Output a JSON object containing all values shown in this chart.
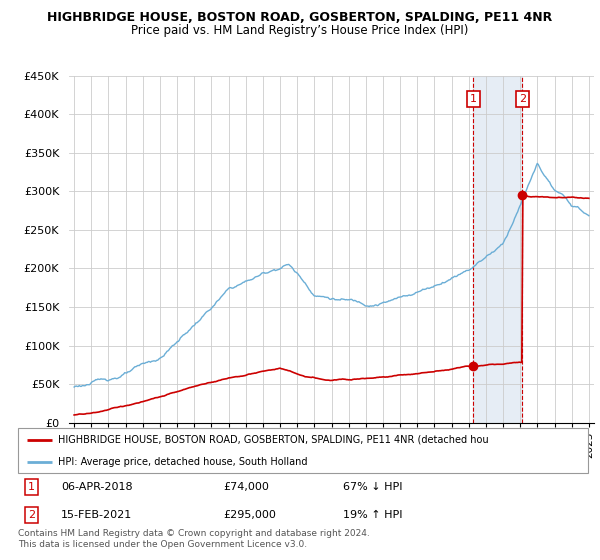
{
  "title": "HIGHBRIDGE HOUSE, BOSTON ROAD, GOSBERTON, SPALDING, PE11 4NR",
  "subtitle": "Price paid vs. HM Land Registry’s House Price Index (HPI)",
  "ylabel_ticks": [
    "£0",
    "£50K",
    "£100K",
    "£150K",
    "£200K",
    "£250K",
    "£300K",
    "£350K",
    "£400K",
    "£450K"
  ],
  "ytick_vals": [
    0,
    50000,
    100000,
    150000,
    200000,
    250000,
    300000,
    350000,
    400000,
    450000
  ],
  "ylim": [
    0,
    450000
  ],
  "sale1": {
    "date": "06-APR-2018",
    "price": 74000,
    "label": "1",
    "pct": "67% ↓ HPI"
  },
  "sale2": {
    "date": "15-FEB-2021",
    "price": 295000,
    "label": "2",
    "pct": "19% ↑ HPI"
  },
  "hpi_color": "#6baed6",
  "price_color": "#cc0000",
  "legend_label1": "HIGHBRIDGE HOUSE, BOSTON ROAD, GOSBERTON, SPALDING, PE11 4NR (detached hou",
  "legend_label2": "HPI: Average price, detached house, South Holland",
  "footer": "Contains HM Land Registry data © Crown copyright and database right 2024.\nThis data is licensed under the Open Government Licence v3.0.",
  "shaded_region_color": "#dce6f1",
  "sale1_year": 2018.27,
  "sale2_year": 2021.12,
  "xlim_left": 1994.7,
  "xlim_right": 2025.3
}
